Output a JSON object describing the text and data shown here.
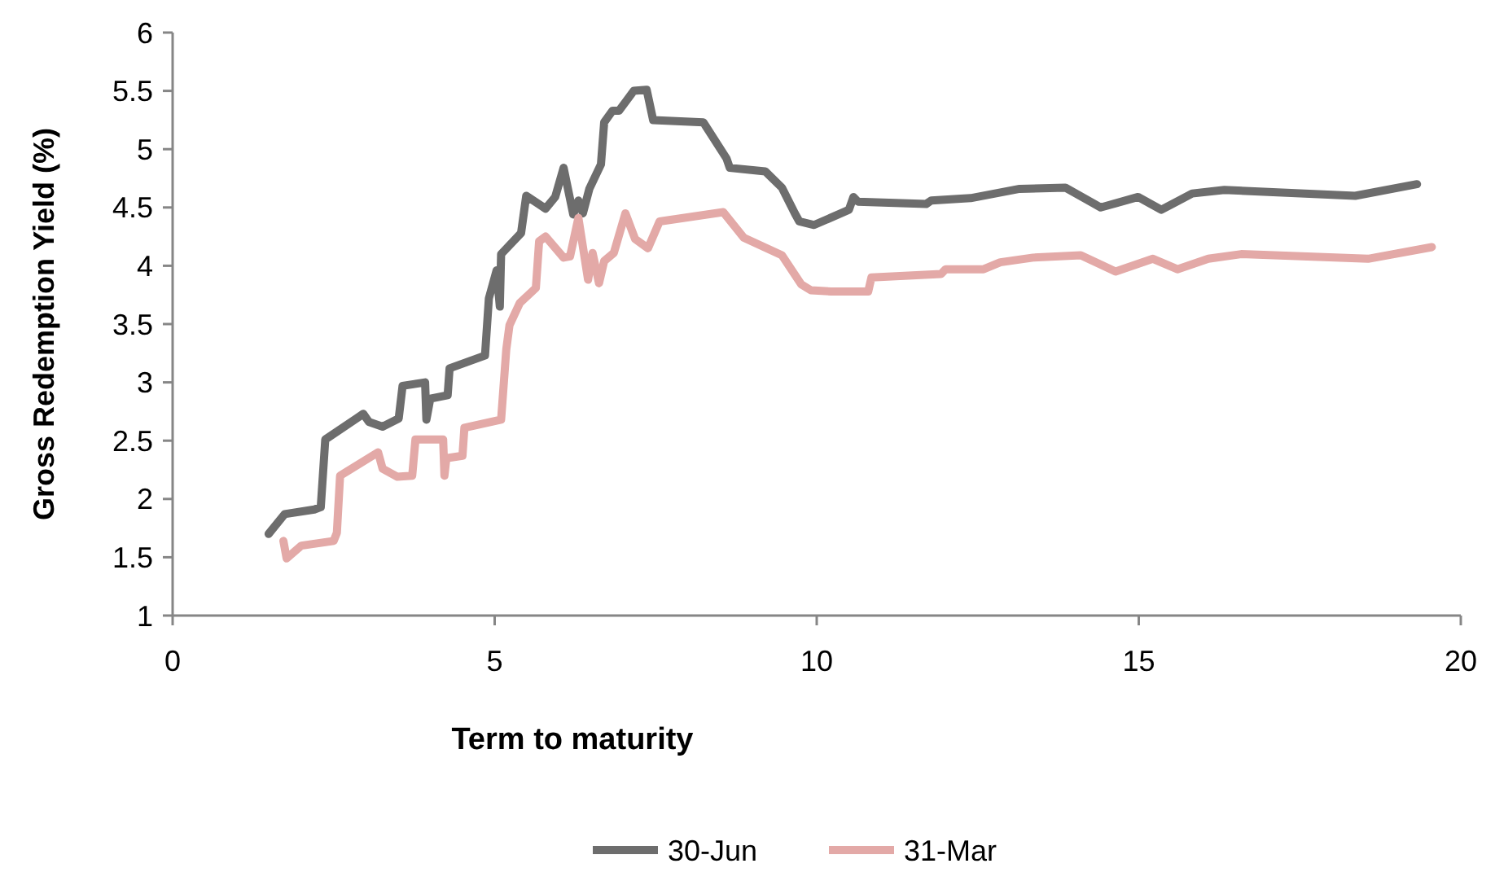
{
  "chart_data": {
    "type": "line",
    "xlabel": "Term to maturity",
    "ylabel": "Gross Redemption Yield (%)",
    "xlim": [
      0,
      20
    ],
    "xticks": [
      0,
      5,
      10,
      15,
      20
    ],
    "ylim": [
      1,
      6
    ],
    "yticks": [
      1,
      1.5,
      2,
      2.5,
      3,
      3.5,
      4,
      4.5,
      5,
      5.5,
      6
    ],
    "grid": false,
    "legend": "bottom",
    "marker": "none",
    "line_style": "solid",
    "series": [
      {
        "name": "30-Jun",
        "color": "#6d6d6d",
        "x": [
          1.49,
          1.74,
          2.2,
          2.3,
          2.37,
          2.96,
          3.05,
          3.26,
          3.51,
          3.57,
          3.92,
          3.94,
          4.0,
          4.27,
          4.3,
          4.85,
          4.91,
          5.03,
          5.08,
          5.1,
          5.41,
          5.49,
          5.79,
          5.94,
          6.07,
          6.22,
          6.3,
          6.37,
          6.47,
          6.65,
          6.7,
          6.83,
          6.93,
          7.16,
          7.36,
          7.46,
          8.24,
          8.6,
          8.65,
          9.2,
          9.46,
          9.66,
          9.73,
          9.96,
          10.5,
          10.57,
          10.64,
          11.7,
          11.78,
          12.39,
          13.15,
          13.86,
          14.41,
          14.99,
          15.35,
          15.83,
          16.33,
          18.36,
          19.32
        ],
        "values": [
          1.7,
          1.87,
          1.91,
          1.93,
          2.51,
          2.73,
          2.66,
          2.62,
          2.69,
          2.97,
          3.0,
          2.68,
          2.86,
          2.89,
          3.12,
          3.23,
          3.72,
          3.96,
          3.65,
          4.1,
          4.28,
          4.6,
          4.49,
          4.59,
          4.84,
          4.44,
          4.56,
          4.45,
          4.66,
          4.87,
          5.23,
          5.33,
          5.33,
          5.5,
          5.51,
          5.25,
          5.23,
          4.92,
          4.84,
          4.81,
          4.67,
          4.45,
          4.38,
          4.35,
          4.48,
          4.59,
          4.55,
          4.53,
          4.56,
          4.58,
          4.66,
          4.67,
          4.5,
          4.59,
          4.48,
          4.62,
          4.65,
          4.6,
          4.7
        ]
      },
      {
        "name": "31-Mar",
        "color": "#e3a9a7",
        "x": [
          1.72,
          1.77,
          2.0,
          2.5,
          2.55,
          2.6,
          3.19,
          3.26,
          3.49,
          3.72,
          3.77,
          4.2,
          4.22,
          4.25,
          4.5,
          4.53,
          5.1,
          5.18,
          5.23,
          5.39,
          5.64,
          5.69,
          5.79,
          6.07,
          6.17,
          6.3,
          6.45,
          6.52,
          6.62,
          6.7,
          6.85,
          7.03,
          7.18,
          7.38,
          7.56,
          8.55,
          8.87,
          9.46,
          9.76,
          9.91,
          10.22,
          10.8,
          10.85,
          11.93,
          12.0,
          12.59,
          12.85,
          13.36,
          14.1,
          14.64,
          15.22,
          15.6,
          16.08,
          16.59,
          18.56,
          19.55
        ],
        "values": [
          1.64,
          1.49,
          1.6,
          1.64,
          1.71,
          2.2,
          2.4,
          2.26,
          2.19,
          2.2,
          2.51,
          2.51,
          2.2,
          2.35,
          2.37,
          2.61,
          2.68,
          3.28,
          3.49,
          3.68,
          3.81,
          4.21,
          4.25,
          4.07,
          4.08,
          4.41,
          3.88,
          4.11,
          3.85,
          4.04,
          4.11,
          4.45,
          4.23,
          4.15,
          4.38,
          4.46,
          4.24,
          4.09,
          3.84,
          3.79,
          3.78,
          3.78,
          3.9,
          3.93,
          3.97,
          3.97,
          4.03,
          4.07,
          4.09,
          3.95,
          4.06,
          3.97,
          4.06,
          4.1,
          4.06,
          4.16
        ]
      }
    ]
  }
}
